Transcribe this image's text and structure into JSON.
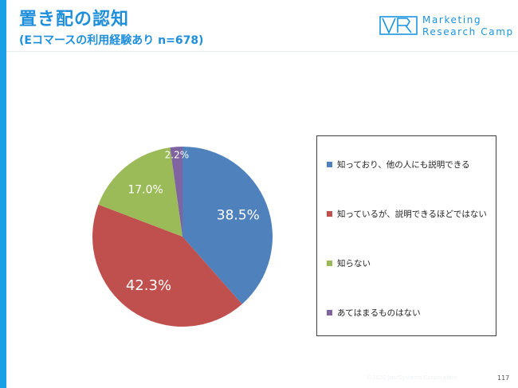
{
  "header": {
    "title": "置き配の認知",
    "subtitle": "(Eコマースの利用経験あり n=678)",
    "logo_line1": "Marketing",
    "logo_line2": "Research Camp",
    "brand_color": "#1aa0e6"
  },
  "chart_data": {
    "type": "pie",
    "title": "",
    "categories": [
      "知っており、他の人にも説明できる",
      "知っているが、説明できるほどではない",
      "知らない",
      "あてはまるものはない"
    ],
    "values": [
      38.5,
      42.3,
      17.0,
      2.2
    ],
    "labels": [
      "38.5%",
      "42.3%",
      "17.0%",
      "2.2%"
    ],
    "colors": [
      "#4f81bd",
      "#c0504d",
      "#9bbb59",
      "#8064a2"
    ],
    "start": "12 o'clock",
    "direction": "clockwise",
    "legend_position": "right"
  },
  "footer": {
    "copyright": "©2020 JustSystems Corporation",
    "page": "117"
  }
}
